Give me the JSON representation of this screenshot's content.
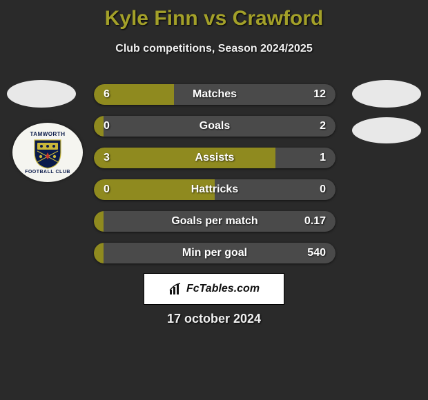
{
  "title": "Kyle Finn vs Crawford",
  "subtitle": "Club competitions, Season 2024/2025",
  "footer_brand": "FcTables.com",
  "footer_date": "17 october 2024",
  "colors": {
    "background": "#2a2a2a",
    "accent": "#a3a029",
    "bar_left": "#8f8a1f",
    "bar_right": "#4a4a4a",
    "text_light": "#f0f0f0",
    "badge_bg": "#ffffff"
  },
  "club_badge": {
    "top_text": "TAMWORTH",
    "bottom_text": "FOOTBALL CLUB",
    "shield_primary": "#0a1a4a",
    "shield_accent": "#c9b83a",
    "shield_accent2": "#c43a2f"
  },
  "bars": [
    {
      "label": "Matches",
      "left_value": "6",
      "right_value": "12",
      "left_pct": 33
    },
    {
      "label": "Goals",
      "left_value": "0",
      "right_value": "2",
      "left_pct": 4
    },
    {
      "label": "Assists",
      "left_value": "3",
      "right_value": "1",
      "left_pct": 75
    },
    {
      "label": "Hattricks",
      "left_value": "0",
      "right_value": "0",
      "left_pct": 50
    },
    {
      "label": "Goals per match",
      "left_value": "",
      "right_value": "0.17",
      "left_pct": 4
    },
    {
      "label": "Min per goal",
      "left_value": "",
      "right_value": "540",
      "left_pct": 4
    }
  ]
}
